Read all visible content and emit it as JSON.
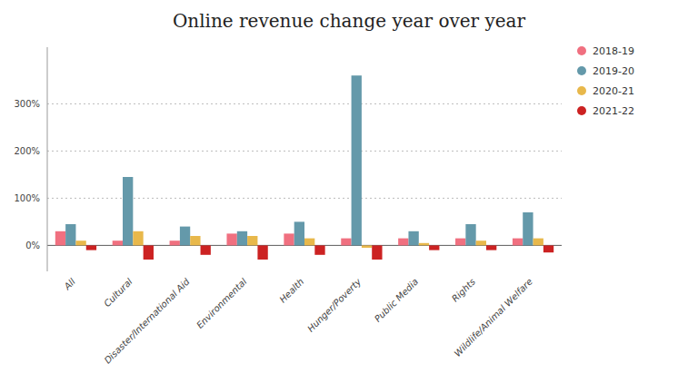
{
  "chart_data": {
    "type": "bar",
    "title": "Online revenue change year over year",
    "categories": [
      "All",
      "Cultural",
      "Disaster/International Aid",
      "Environmental",
      "Health",
      "Hunger/Poverty",
      "Public Media",
      "Rights",
      "Wildlife/Animal Welfare"
    ],
    "series": [
      {
        "name": "2018-19",
        "color": "#F07080",
        "values": [
          30,
          10,
          10,
          25,
          25,
          15,
          15,
          15,
          15
        ]
      },
      {
        "name": "2019-20",
        "color": "#6499AA",
        "values": [
          45,
          145,
          40,
          30,
          50,
          360,
          30,
          45,
          70
        ]
      },
      {
        "name": "2020-21",
        "color": "#E8B84B",
        "values": [
          10,
          30,
          20,
          20,
          15,
          -5,
          5,
          10,
          15
        ]
      },
      {
        "name": "2021-22",
        "color": "#CC2222",
        "values": [
          -10,
          -30,
          -20,
          -30,
          -20,
          -30,
          -10,
          -10,
          -15
        ]
      }
    ],
    "ylim": [
      -55,
      420
    ],
    "yticks": [
      {
        "value": 0,
        "label": "0%"
      },
      {
        "value": 100,
        "label": "100%"
      },
      {
        "value": 200,
        "label": "200%"
      },
      {
        "value": 300,
        "label": "300%"
      }
    ],
    "grid": true,
    "legend": "right"
  }
}
